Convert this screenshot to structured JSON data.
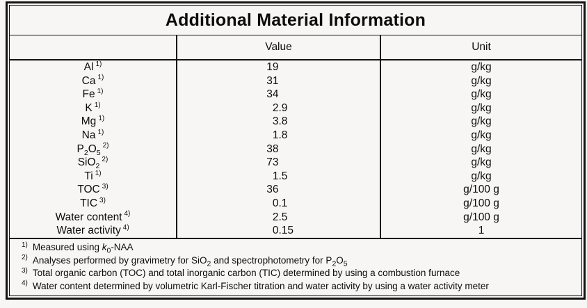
{
  "title": "Additional Material Information",
  "table": {
    "columns": {
      "param": "",
      "value": "Value",
      "unit": "Unit"
    },
    "rows": [
      {
        "param": "Al",
        "marker": "1)",
        "value": "19",
        "unit": "g/kg"
      },
      {
        "param": "Ca",
        "marker": "1)",
        "value": "31",
        "unit": "g/kg"
      },
      {
        "param": "Fe",
        "marker": "1)",
        "value": "34",
        "unit": "g/kg"
      },
      {
        "param": "K",
        "marker": "1)",
        "value": "2.9",
        "unit": "g/kg"
      },
      {
        "param": "Mg",
        "marker": "1)",
        "value": "3.8",
        "unit": "g/kg"
      },
      {
        "param": "Na",
        "marker": "1)",
        "value": "1.8",
        "unit": "g/kg"
      },
      {
        "param": "P_{2}O_{5}",
        "marker": "2)",
        "value": "38",
        "unit": "g/kg"
      },
      {
        "param": "SiO_{2}",
        "marker": "2)",
        "value": "73",
        "unit": "g/kg"
      },
      {
        "param": "Ti",
        "marker": "1)",
        "value": "1.5",
        "unit": "g/kg"
      },
      {
        "param": "TOC",
        "marker": "3)",
        "value": "36",
        "unit": "g/100 g"
      },
      {
        "param": "TIC",
        "marker": "3)",
        "value": "0.1",
        "unit": "g/100 g"
      },
      {
        "param": "Water content",
        "marker": "4)",
        "value": "2.5",
        "unit": "g/100 g"
      },
      {
        "param": "Water activity",
        "marker": "4)",
        "value": "0.15",
        "unit": "1"
      }
    ]
  },
  "footnotes": [
    {
      "marker": "1)",
      "text": "Measured using /{k}_{0}-NAA"
    },
    {
      "marker": "2)",
      "text": "Analyses performed by gravimetry for SiO_{2} and spectrophotometry for P_{2}O_{5}"
    },
    {
      "marker": "3)",
      "text": "Total organic carbon (TOC) and total inorganic carbon (TIC) determined by using a combustion furnace"
    },
    {
      "marker": "4)",
      "text": "Water content determined by volumetric Karl-Fischer titration and water activity by using a water activity meter"
    }
  ],
  "colors": {
    "paper": "#f7f6f4",
    "ink": "#0c0c0c",
    "border": "#131313"
  }
}
